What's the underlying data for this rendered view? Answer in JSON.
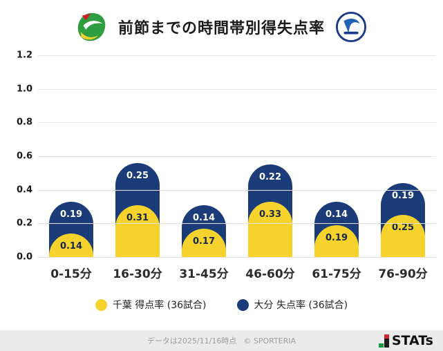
{
  "header": {
    "title": "前節までの時間帯別得失点率",
    "left_logo": "jef-united-chiba-crest",
    "right_logo": "oita-trinita-crest"
  },
  "chart_data": {
    "type": "bar",
    "stacked": true,
    "title": "前節までの時間帯別得失点率",
    "categories": [
      "0-15分",
      "16-30分",
      "31-45分",
      "46-60分",
      "61-75分",
      "76-90分"
    ],
    "series": [
      {
        "name": "千葉 得点率 (36試合)",
        "color": "#f5d32c",
        "values": [
          0.14,
          0.31,
          0.17,
          0.33,
          0.19,
          0.25
        ]
      },
      {
        "name": "大分 失点率 (36試合)",
        "color": "#1b3c78",
        "values": [
          0.19,
          0.25,
          0.14,
          0.22,
          0.14,
          0.19
        ]
      }
    ],
    "ylim": [
      0,
      1.2
    ],
    "yticks": [
      0.0,
      0.2,
      0.4,
      0.6,
      0.8,
      1.0,
      1.2
    ],
    "grid": true,
    "legend_position": "bottom"
  },
  "footer": {
    "note": "データは2025/11/16時点",
    "copyright": "© SPORTERIA",
    "brand": "STATs"
  }
}
